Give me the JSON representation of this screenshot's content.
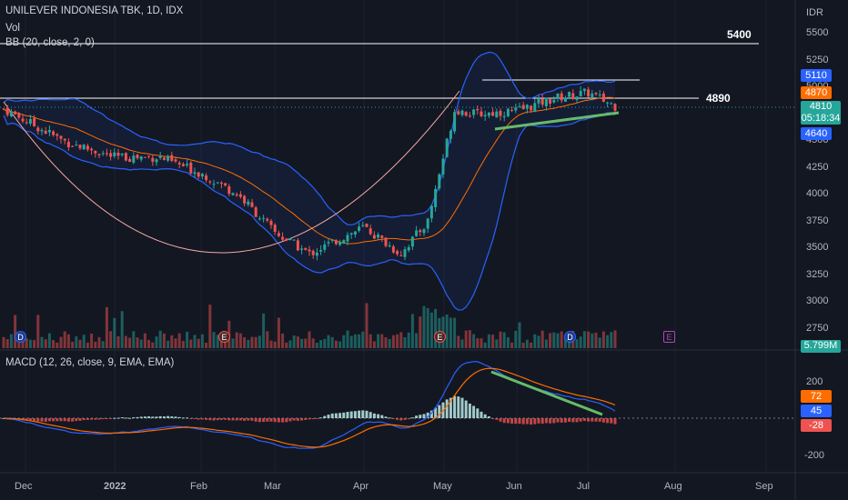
{
  "header": {
    "symbol_line": "UNILEVER INDONESIA TBK, 1D, IDX",
    "vol_label": "Vol",
    "bb_label": "BB (20, close, 2, 0)",
    "macd_label": "MACD (12, 26, close, 9, EMA, EMA)"
  },
  "price_axis": {
    "currency": "IDR",
    "ticks": [
      "5500",
      "5250",
      "5000",
      "4750",
      "4500",
      "4250",
      "4000",
      "3750",
      "3500",
      "3250",
      "3000",
      "2750"
    ]
  },
  "tags": {
    "upper_band": "5110",
    "mid_band": "4870",
    "last_price": "4810",
    "countdown": "05:18:34",
    "lower_band": "4640",
    "volume": "5.799M",
    "macd_signal": "72",
    "macd_line": "45",
    "macd_hist": "-28"
  },
  "levels": {
    "resistance": "5400",
    "support": "4890"
  },
  "macd_axis": {
    "ticks": [
      "200",
      "-200"
    ]
  },
  "time_axis": {
    "ticks": [
      "Dec",
      "2022",
      "Feb",
      "Mar",
      "Apr",
      "May",
      "Jun",
      "Jul",
      "Aug",
      "Sep"
    ]
  },
  "events": [
    {
      "label": "D",
      "kind": "dividend"
    },
    {
      "label": "E",
      "kind": "earnings"
    },
    {
      "label": "E",
      "kind": "earnings"
    },
    {
      "label": "D",
      "kind": "dividend"
    },
    {
      "label": "E",
      "kind": "earnings-upcoming"
    }
  ],
  "colors": {
    "background": "#131722",
    "up": "#26a69a",
    "down": "#ef5350",
    "bb_band": "#2962ff",
    "bb_basis": "#ff6d00",
    "trendline": "#66bb6a",
    "macd_line": "#2962ff",
    "signal_line": "#ff6d00"
  },
  "chart_data": {
    "type": "candlestick",
    "symbol": "UNILEVER INDONESIA TBK",
    "interval": "1D",
    "x": [
      "Dec",
      "2022",
      "Feb",
      "Mar",
      "Apr",
      "May",
      "Jun",
      "Jul",
      "Aug",
      "Sep"
    ],
    "close_path": [
      [
        "Dec",
        4800
      ],
      [
        "Dec-mid",
        4500
      ],
      [
        "2022",
        4350
      ],
      [
        "Jan-mid",
        4350
      ],
      [
        "Feb",
        4200
      ],
      [
        "Feb-mid",
        4000
      ],
      [
        "Mar",
        3650
      ],
      [
        "Mar-mid",
        3450
      ],
      [
        "Apr",
        3700
      ],
      [
        "Apr-mid",
        3450
      ],
      [
        "Apr-end",
        3750
      ],
      [
        "May",
        4800
      ],
      [
        "May-mid",
        4750
      ],
      [
        "Jun",
        4780
      ],
      [
        "Jun-mid",
        4900
      ],
      [
        "Jul",
        4950
      ],
      [
        "Jul-mid",
        4810
      ]
    ],
    "bollinger": {
      "period": 20,
      "source": "close",
      "mult": 2,
      "offset": 0
    },
    "macd": {
      "fast": 12,
      "slow": 26,
      "source": "close",
      "signal": 9,
      "ma_type": "EMA",
      "signal_type": "EMA"
    },
    "ylim": [
      2650,
      5650
    ]
  }
}
